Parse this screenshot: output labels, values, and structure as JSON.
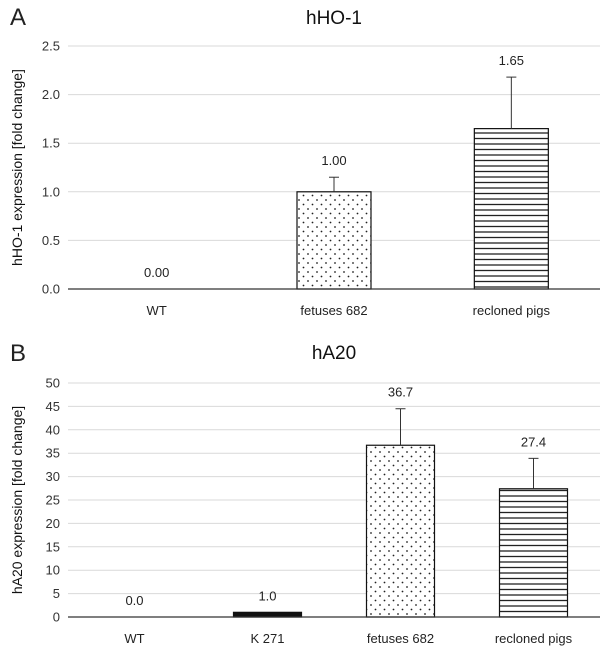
{
  "panels": {
    "a_letter": "A",
    "b_letter": "B"
  },
  "chart_data": [
    {
      "type": "bar",
      "title": "hHO-1",
      "ylabel": "hHO-1 expression [fold change]",
      "xlabel": "",
      "categories": [
        "WT",
        "fetuses 682",
        "recloned pigs"
      ],
      "values": [
        0.0,
        1.0,
        1.65
      ],
      "errors": [
        0,
        0.15,
        0.53
      ],
      "data_labels": [
        "0.00",
        "1.00",
        "1.65"
      ],
      "fills": [
        "none",
        "dots",
        "hlines"
      ],
      "ylim": [
        0,
        2.5
      ],
      "yticks": [
        0.0,
        0.5,
        1.0,
        1.5,
        2.0,
        2.5
      ],
      "ytick_labels": [
        "0.0",
        "0.5",
        "1.0",
        "1.5",
        "2.0",
        "2.5"
      ],
      "grid": true
    },
    {
      "type": "bar",
      "title": "hA20",
      "ylabel": "hA20 expression [fold change]",
      "xlabel": "",
      "categories": [
        "WT",
        "K 271",
        "fetuses 682",
        "recloned pigs"
      ],
      "values": [
        0.0,
        1.0,
        36.7,
        27.4
      ],
      "errors": [
        0,
        0,
        7.8,
        6.5
      ],
      "data_labels": [
        "0.0",
        "1.0",
        "36.7",
        "27.4"
      ],
      "fills": [
        "none",
        "solid",
        "dots",
        "hlines"
      ],
      "ylim": [
        0,
        50
      ],
      "yticks": [
        0,
        5,
        10,
        15,
        20,
        25,
        30,
        35,
        40,
        45,
        50
      ],
      "ytick_labels": [
        "0",
        "5",
        "10",
        "15",
        "20",
        "25",
        "30",
        "35",
        "40",
        "45",
        "50"
      ],
      "grid": true
    }
  ]
}
